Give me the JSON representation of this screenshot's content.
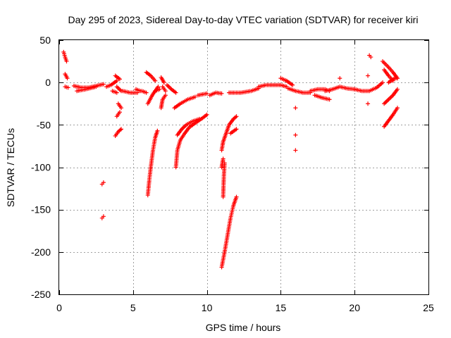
{
  "chart_data": {
    "type": "scatter",
    "title": "Day 295 of 2023, Sidereal Day-to-day VTEC variation (SDTVAR) for receiver kiri",
    "xlabel": "GPS time / hours",
    "ylabel": "SDTVAR / TECUs",
    "xlim": [
      0,
      25
    ],
    "ylim": [
      -250,
      50
    ],
    "xticks": [
      0,
      5,
      10,
      15,
      20,
      25
    ],
    "yticks": [
      50,
      0,
      -50,
      -100,
      -150,
      -200,
      -250
    ],
    "grid": true,
    "marker": "+",
    "color": "#ff0000",
    "segments": [
      [
        [
          0.3,
          36
        ],
        [
          0.4,
          30
        ],
        [
          0.5,
          25
        ]
      ],
      [
        [
          0.4,
          10
        ],
        [
          0.55,
          5
        ]
      ],
      [
        [
          0.4,
          -5
        ],
        [
          0.6,
          -6
        ]
      ],
      [
        [
          1.0,
          -4
        ],
        [
          1.5,
          -6
        ],
        [
          2.0,
          -6
        ],
        [
          2.5,
          -4
        ],
        [
          3.0,
          -2
        ]
      ],
      [
        [
          1.2,
          -10
        ],
        [
          1.8,
          -8
        ],
        [
          2.5,
          -5
        ]
      ],
      [
        [
          2.9,
          -120
        ],
        [
          3.0,
          -118
        ]
      ],
      [
        [
          2.9,
          -160
        ],
        [
          3.0,
          -158
        ]
      ],
      [
        [
          3.2,
          -5
        ],
        [
          3.5,
          -3
        ],
        [
          3.9,
          2
        ]
      ],
      [
        [
          3.6,
          -10
        ],
        [
          3.9,
          -12
        ]
      ],
      [
        [
          3.9,
          -5
        ],
        [
          4.2,
          -10
        ]
      ],
      [
        [
          3.8,
          8
        ],
        [
          4.1,
          4
        ]
      ],
      [
        [
          4.0,
          -25
        ],
        [
          4.2,
          -30
        ]
      ],
      [
        [
          3.9,
          -40
        ],
        [
          4.1,
          -35
        ]
      ],
      [
        [
          3.8,
          -63
        ],
        [
          4.0,
          -58
        ],
        [
          4.2,
          -55
        ]
      ],
      [
        [
          4.3,
          -10
        ],
        [
          4.8,
          -12
        ],
        [
          5.3,
          -12
        ]
      ],
      [
        [
          5.2,
          -8
        ],
        [
          5.5,
          -10
        ]
      ],
      [
        [
          5.6,
          -10
        ],
        [
          5.9,
          -12
        ]
      ],
      [
        [
          5.9,
          12
        ],
        [
          6.2,
          8
        ],
        [
          6.5,
          2
        ]
      ],
      [
        [
          6.0,
          -25
        ],
        [
          6.3,
          -15
        ],
        [
          6.7,
          -5
        ]
      ],
      [
        [
          6.5,
          -10
        ],
        [
          6.8,
          -8
        ]
      ],
      [
        [
          6.0,
          -133
        ],
        [
          6.1,
          -115
        ],
        [
          6.2,
          -100
        ],
        [
          6.35,
          -80
        ],
        [
          6.5,
          -65
        ],
        [
          6.65,
          -57
        ]
      ],
      [
        [
          6.9,
          6
        ],
        [
          7.1,
          0
        ]
      ],
      [
        [
          6.9,
          -30
        ],
        [
          7.0,
          -20
        ],
        [
          7.2,
          -15
        ]
      ],
      [
        [
          7.0,
          -5
        ],
        [
          7.2,
          -10
        ]
      ],
      [
        [
          7.3,
          -3
        ],
        [
          7.6,
          -8
        ],
        [
          7.9,
          -12
        ]
      ],
      [
        [
          7.9,
          -100
        ],
        [
          8.0,
          -80
        ],
        [
          8.2,
          -68
        ],
        [
          8.5,
          -60
        ],
        [
          8.8,
          -53
        ],
        [
          9.2,
          -48
        ],
        [
          9.7,
          -42
        ],
        [
          10.0,
          -38
        ]
      ],
      [
        [
          7.8,
          -30
        ],
        [
          8.2,
          -25
        ],
        [
          8.7,
          -20
        ],
        [
          9.2,
          -17
        ]
      ],
      [
        [
          8.0,
          -62
        ],
        [
          8.3,
          -55
        ],
        [
          8.6,
          -50
        ],
        [
          9.0,
          -46
        ],
        [
          9.5,
          -43
        ]
      ],
      [
        [
          9.4,
          -15
        ],
        [
          10.0,
          -13
        ]
      ],
      [
        [
          10.2,
          -15
        ],
        [
          10.6,
          -12
        ],
        [
          11.0,
          -13
        ]
      ],
      [
        [
          11.0,
          -80
        ],
        [
          11.1,
          -70
        ],
        [
          11.3,
          -60
        ],
        [
          11.5,
          -50
        ],
        [
          11.8,
          -43
        ],
        [
          12.0,
          -40
        ]
      ],
      [
        [
          11.1,
          -135
        ],
        [
          11.15,
          -110
        ],
        [
          11.2,
          -95
        ]
      ],
      [
        [
          11.0,
          -100
        ],
        [
          11.1,
          -90
        ]
      ],
      [
        [
          11.0,
          -218
        ],
        [
          11.2,
          -200
        ],
        [
          11.4,
          -180
        ],
        [
          11.6,
          -160
        ],
        [
          11.8,
          -145
        ],
        [
          12.0,
          -135
        ]
      ],
      [
        [
          11.6,
          -60
        ],
        [
          12.0,
          -55
        ]
      ],
      [
        [
          11.5,
          -12
        ],
        [
          12.3,
          -12
        ],
        [
          13.0,
          -10
        ],
        [
          13.5,
          -7
        ]
      ],
      [
        [
          13.5,
          -5
        ],
        [
          14.0,
          -3
        ],
        [
          14.5,
          -3
        ],
        [
          15.0,
          -3
        ],
        [
          15.4,
          -5
        ]
      ],
      [
        [
          15.0,
          5
        ],
        [
          15.4,
          2
        ],
        [
          15.8,
          -3
        ]
      ],
      [
        [
          15.5,
          -7
        ],
        [
          16.0,
          -10
        ],
        [
          16.5,
          -12
        ],
        [
          17.0,
          -12
        ]
      ],
      [
        [
          16.0,
          -30
        ]
      ],
      [
        [
          16.0,
          -62
        ]
      ],
      [
        [
          16.0,
          -80
        ]
      ],
      [
        [
          17.0,
          -10
        ],
        [
          17.5,
          -8
        ],
        [
          18.0,
          -8
        ],
        [
          18.3,
          -10
        ]
      ],
      [
        [
          17.3,
          -15
        ],
        [
          17.8,
          -18
        ],
        [
          18.3,
          -20
        ]
      ],
      [
        [
          18.0,
          -10
        ],
        [
          18.5,
          -8
        ],
        [
          19.0,
          -5
        ],
        [
          19.5,
          -7
        ],
        [
          20.0,
          -8
        ]
      ],
      [
        [
          19.0,
          5
        ]
      ],
      [
        [
          20.0,
          -8
        ],
        [
          20.5,
          -10
        ],
        [
          21.0,
          -10
        ],
        [
          21.5,
          -6
        ],
        [
          21.9,
          0
        ]
      ],
      [
        [
          21.0,
          32
        ],
        [
          21.1,
          30
        ]
      ],
      [
        [
          20.9,
          8
        ]
      ],
      [
        [
          20.9,
          -25
        ]
      ],
      [
        [
          21.9,
          25
        ],
        [
          22.3,
          18
        ],
        [
          22.6,
          12
        ],
        [
          22.9,
          5
        ]
      ],
      [
        [
          22.0,
          15
        ],
        [
          22.3,
          8
        ],
        [
          22.6,
          2
        ]
      ],
      [
        [
          22.3,
          0
        ],
        [
          22.7,
          5
        ],
        [
          22.9,
          5
        ]
      ],
      [
        [
          22.0,
          -25
        ],
        [
          22.3,
          -20
        ],
        [
          22.6,
          -15
        ],
        [
          22.9,
          -8
        ]
      ],
      [
        [
          22.0,
          -52
        ],
        [
          22.3,
          -45
        ],
        [
          22.6,
          -38
        ],
        [
          22.9,
          -30
        ]
      ]
    ]
  }
}
